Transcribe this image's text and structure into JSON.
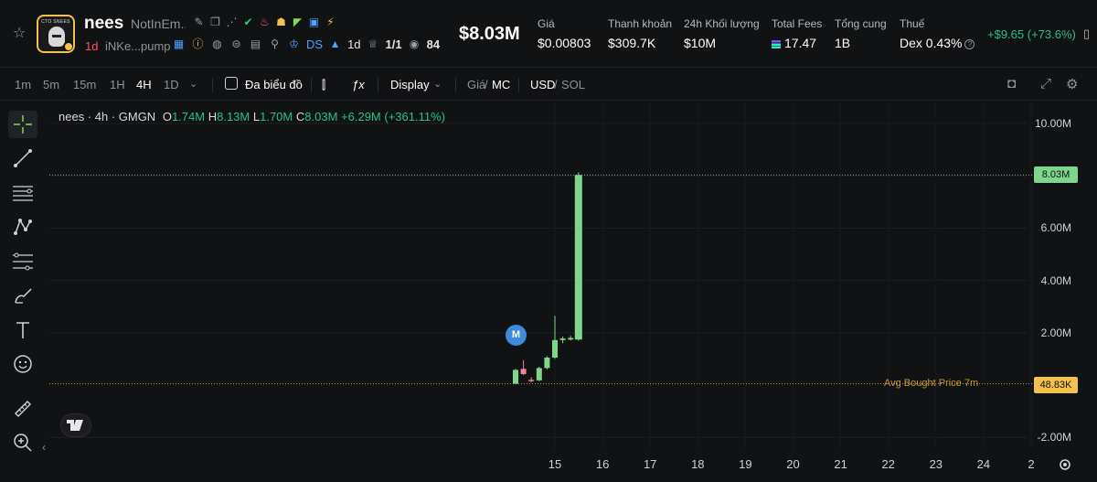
{
  "header": {
    "name": "nees",
    "fullname": "NotInEm...",
    "logo_text": "CTO SNEES",
    "age": "1d",
    "address": "iNKe...pump",
    "ds_label": "DS",
    "holder_age": "1d",
    "ratio": "1/1",
    "views": "84",
    "market_cap": "$8.03M",
    "stats": [
      {
        "label": "Giá",
        "value": "$0.00803"
      },
      {
        "label": "Thanh khoản",
        "value": "$309.7K"
      },
      {
        "label": "24h Khối lượng",
        "value": "$10M"
      },
      {
        "label": "Total Fees",
        "value": "17.47"
      },
      {
        "label": "Tổng cung",
        "value": "1B"
      },
      {
        "label": "Thuế",
        "value": "Dex 0.43%"
      }
    ],
    "change": "+$9.65 (+73.6%)"
  },
  "toolbar": {
    "intervals": [
      "1m",
      "5m",
      "15m",
      "1H",
      "4H",
      "1D"
    ],
    "active_interval": "4H",
    "multichart_label": "Đa biểu đồ",
    "display_label": "Display",
    "price_label": "Giá",
    "mc_label": "MC",
    "usd_label": "USD",
    "sol_label": "SOL",
    "separator": "/"
  },
  "legend": {
    "symbol": "nees · 4h · GMGN",
    "o_key": "O",
    "o_val": "1.74M",
    "h_key": "H",
    "h_val": "8.13M",
    "l_key": "L",
    "l_val": "1.70M",
    "c_key": "C",
    "c_val": "8.03M",
    "change": "+6.29M (+361.11%)"
  },
  "marker_label": "M",
  "avg_label": "Avg Bought Price 7m",
  "current_price_tag": "8.03M",
  "avg_price_tag": "48.83K",
  "colors": {
    "up": "#7ed68c",
    "down": "#f0829a",
    "accent_green": "#26c281",
    "avg_line": "#c89b2f"
  },
  "chart_data": {
    "type": "candlestick",
    "y_ticks": [
      "10.00M",
      "8.00M",
      "6.00M",
      "4.00M",
      "2.00M",
      "-2.00M"
    ],
    "x_ticks": [
      "15",
      "16",
      "17",
      "18",
      "19",
      "20",
      "21",
      "22",
      "23",
      "24",
      "2"
    ],
    "ylim": [
      -2.5,
      10.5
    ],
    "current_price": 8.03,
    "avg_bought_price": 0.04883,
    "candles": [
      {
        "o": 0.05,
        "h": 0.62,
        "l": 0.04,
        "c": 0.58
      },
      {
        "o": 0.62,
        "h": 0.95,
        "l": 0.38,
        "c": 0.42
      },
      {
        "o": 0.2,
        "h": 0.3,
        "l": 0.1,
        "c": 0.15
      },
      {
        "o": 0.18,
        "h": 0.7,
        "l": 0.15,
        "c": 0.65
      },
      {
        "o": 0.65,
        "h": 1.1,
        "l": 0.6,
        "c": 1.05
      },
      {
        "o": 1.05,
        "h": 2.65,
        "l": 1.0,
        "c": 1.72
      },
      {
        "o": 1.72,
        "h": 1.85,
        "l": 1.6,
        "c": 1.78
      },
      {
        "o": 1.74,
        "h": 1.88,
        "l": 1.7,
        "c": 1.8
      },
      {
        "o": 1.74,
        "h": 8.13,
        "l": 1.7,
        "c": 8.03
      }
    ]
  }
}
